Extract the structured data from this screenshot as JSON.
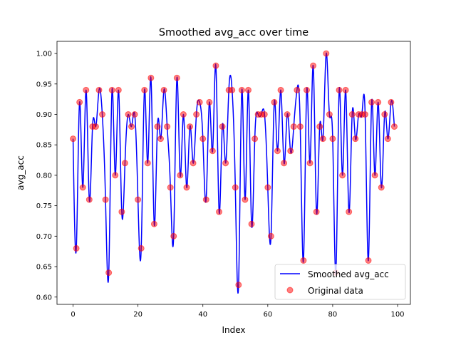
{
  "chart_data": {
    "type": "line",
    "title": "Smoothed avg_acc over time",
    "xlabel": "Index",
    "ylabel": "avg_acc",
    "xlim": [
      -4.95,
      103.95
    ],
    "ylim": [
      0.588,
      1.02
    ],
    "xticks": [
      0,
      20,
      40,
      60,
      80,
      100
    ],
    "yticks": [
      0.6,
      0.65,
      0.7,
      0.75,
      0.8,
      0.85,
      0.9,
      0.95,
      1.0
    ],
    "xtick_labels": [
      "0",
      "20",
      "40",
      "60",
      "80",
      "100"
    ],
    "ytick_labels": [
      "0.60",
      "0.65",
      "0.70",
      "0.75",
      "0.80",
      "0.85",
      "0.90",
      "0.95",
      "1.00"
    ],
    "grid": false,
    "legend_position": "lower right",
    "series": [
      {
        "name": "Smoothed avg_acc",
        "kind": "line",
        "color": "#0000ff",
        "note": "cubic spline through the original points"
      },
      {
        "name": "Original data",
        "kind": "scatter",
        "color": "#ff0000",
        "opacity": 0.5,
        "x": [
          0,
          1,
          2,
          3,
          4,
          5,
          6,
          7,
          8,
          9,
          10,
          11,
          12,
          13,
          14,
          15,
          16,
          17,
          18,
          19,
          20,
          21,
          22,
          23,
          24,
          25,
          26,
          27,
          28,
          29,
          30,
          31,
          32,
          33,
          34,
          35,
          36,
          37,
          38,
          39,
          40,
          41,
          42,
          43,
          44,
          45,
          46,
          47,
          48,
          49,
          50,
          51,
          52,
          53,
          54,
          55,
          56,
          57,
          58,
          59,
          60,
          61,
          62,
          63,
          64,
          65,
          66,
          67,
          68,
          69,
          70,
          71,
          72,
          73,
          74,
          75,
          76,
          77,
          78,
          79,
          80,
          81,
          82,
          83,
          84,
          85,
          86,
          87,
          88,
          89,
          90,
          91,
          92,
          93,
          94,
          95,
          96,
          97,
          98,
          99
        ],
        "values": [
          0.86,
          0.68,
          0.92,
          0.78,
          0.94,
          0.76,
          0.88,
          0.88,
          0.94,
          0.9,
          0.76,
          0.64,
          0.94,
          0.8,
          0.94,
          0.74,
          0.82,
          0.9,
          0.88,
          0.9,
          0.76,
          0.68,
          0.94,
          0.82,
          0.96,
          0.72,
          0.88,
          0.86,
          0.94,
          0.88,
          0.78,
          0.7,
          0.96,
          0.8,
          0.9,
          0.78,
          0.88,
          0.82,
          0.9,
          0.92,
          0.86,
          0.76,
          0.92,
          0.84,
          0.98,
          0.74,
          0.88,
          0.82,
          0.94,
          0.94,
          0.78,
          0.62,
          0.94,
          0.76,
          0.94,
          0.72,
          0.86,
          0.9,
          0.9,
          0.9,
          0.78,
          0.7,
          0.92,
          0.84,
          0.94,
          0.82,
          0.9,
          0.84,
          0.88,
          0.94,
          0.88,
          0.66,
          0.94,
          0.82,
          0.98,
          0.74,
          0.88,
          0.86,
          1.0,
          0.9,
          0.86,
          0.64,
          0.94,
          0.8,
          0.94,
          0.74,
          0.9,
          0.86,
          0.9,
          0.9,
          0.9,
          0.66,
          0.92,
          0.8,
          0.92,
          0.78,
          0.9,
          0.86,
          0.92,
          0.88
        ]
      }
    ]
  }
}
